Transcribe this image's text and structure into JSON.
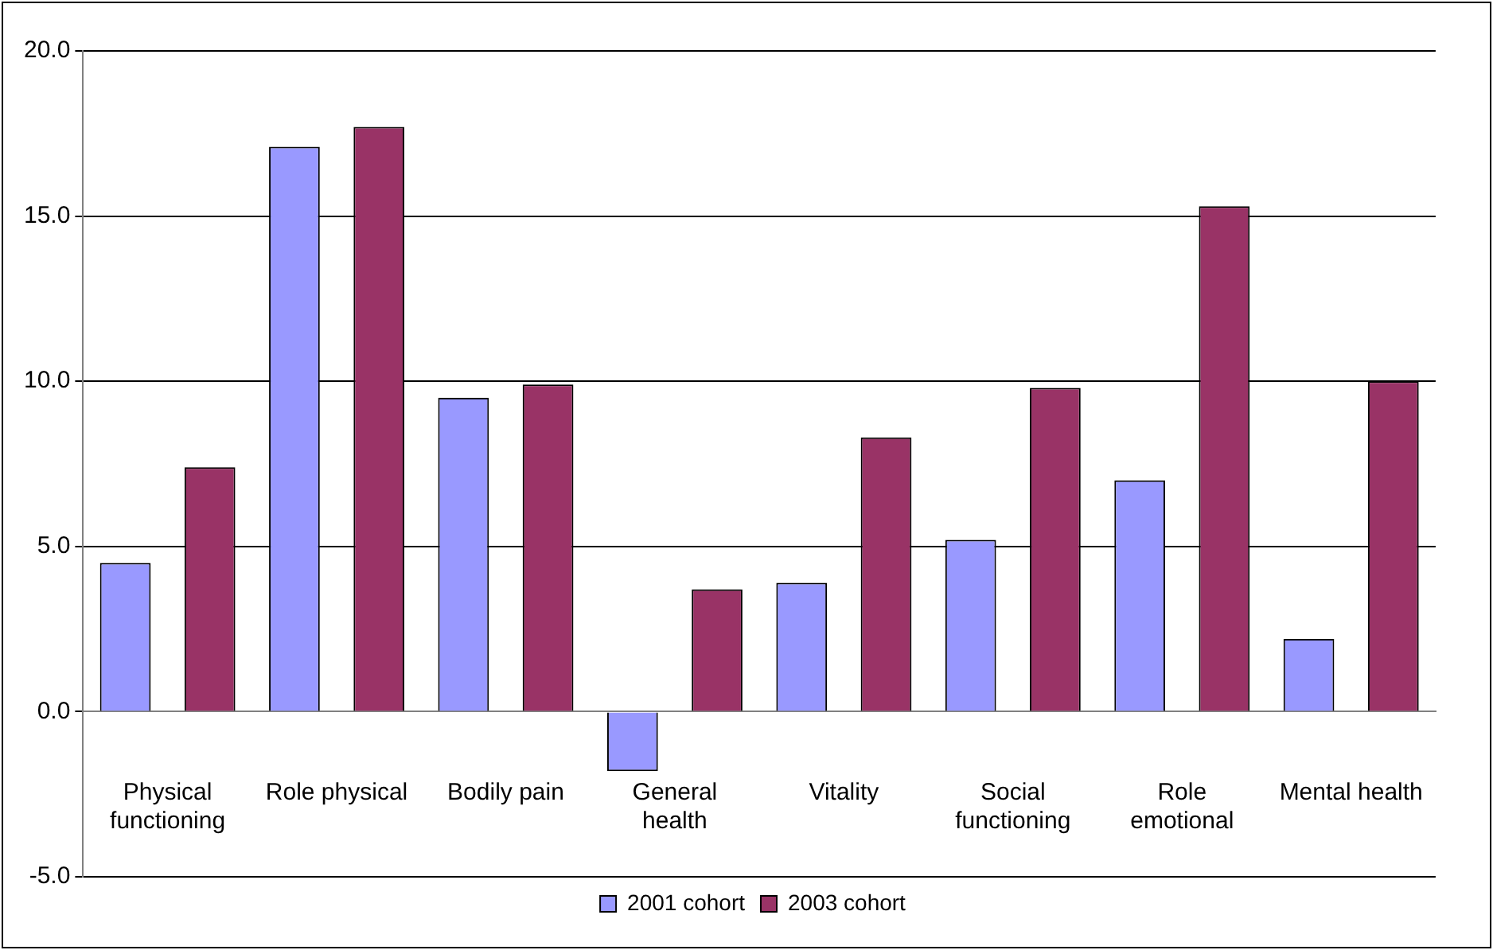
{
  "chart_data": {
    "type": "bar",
    "categories": [
      "Physical functioning",
      "Role physical",
      "Bodily pain",
      "General health",
      "Vitality",
      "Social functioning",
      "Role emotional",
      "Mental health"
    ],
    "series": [
      {
        "name": "2001 cohort",
        "color": "#9999ff",
        "values": [
          4.5,
          17.1,
          9.5,
          -1.8,
          3.9,
          5.2,
          7.0,
          2.2
        ]
      },
      {
        "name": "2003 cohort",
        "color": "#993366",
        "values": [
          7.4,
          17.7,
          9.9,
          3.7,
          8.3,
          9.8,
          15.3,
          10.0
        ]
      }
    ],
    "ylim": [
      -5,
      20
    ],
    "yticks": [
      {
        "value": -5,
        "label": "-5.0"
      },
      {
        "value": 0,
        "label": "0.0"
      },
      {
        "value": 5,
        "label": "5.0"
      },
      {
        "value": 10,
        "label": "10.0"
      },
      {
        "value": 15,
        "label": "15.0"
      },
      {
        "value": 20,
        "label": "20.0"
      }
    ],
    "grid": "y",
    "legend": "bottom"
  }
}
